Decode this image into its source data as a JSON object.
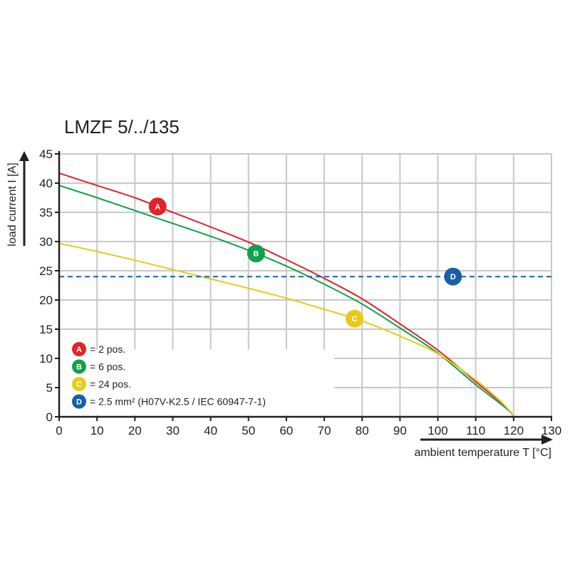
{
  "chart_data": {
    "type": "line",
    "title": "LMZF 5/../135",
    "xlabel": "ambient temperature T [°C]",
    "ylabel": "load current I [A]",
    "xlim": [
      0,
      130
    ],
    "ylim": [
      0,
      45
    ],
    "xticks": [
      0,
      10,
      20,
      30,
      40,
      50,
      60,
      70,
      80,
      90,
      100,
      110,
      120,
      130
    ],
    "yticks": [
      0,
      5,
      10,
      15,
      20,
      25,
      30,
      35,
      40,
      45
    ],
    "grid": true,
    "legend_position": "bottom-left",
    "series": [
      {
        "id": "A",
        "name": "= 2 pos.",
        "color": "#e2232a",
        "marker_x": 26,
        "x": [
          0,
          10,
          20,
          30,
          40,
          50,
          60,
          70,
          80,
          90,
          100,
          110,
          116,
          119,
          120
        ],
        "y": [
          41.7,
          39.6,
          37.5,
          35.0,
          32.5,
          29.9,
          26.9,
          23.7,
          20.2,
          15.9,
          11.4,
          6.0,
          2.8,
          1.0,
          0
        ]
      },
      {
        "id": "B",
        "name": "= 6 pos.",
        "color": "#10a14b",
        "marker_x": 52,
        "x": [
          0,
          10,
          20,
          30,
          40,
          50,
          60,
          70,
          80,
          90,
          100,
          110,
          116,
          119,
          120
        ],
        "y": [
          39.6,
          37.5,
          35.3,
          33.1,
          30.9,
          28.5,
          25.8,
          22.7,
          19.3,
          15.2,
          10.9,
          5.5,
          2.5,
          0.9,
          0
        ]
      },
      {
        "id": "C",
        "name": "= 24 pos.",
        "color": "#e5cc18",
        "marker_x": 78,
        "x": [
          0,
          10,
          20,
          30,
          40,
          50,
          60,
          70,
          80,
          90,
          100,
          110,
          116,
          119,
          120
        ],
        "y": [
          29.7,
          28.3,
          26.8,
          25.2,
          23.6,
          22.0,
          20.3,
          18.4,
          16.4,
          13.8,
          10.8,
          6.3,
          3.0,
          1.0,
          0
        ]
      },
      {
        "id": "D",
        "name": "= 2.5 mm² (H07V-K2.5 / IEC 60947-7-1)",
        "color": "#1a5fa3",
        "style": "dashed",
        "marker_x": 104,
        "x": [
          0,
          130
        ],
        "y": [
          24,
          24
        ]
      }
    ]
  }
}
